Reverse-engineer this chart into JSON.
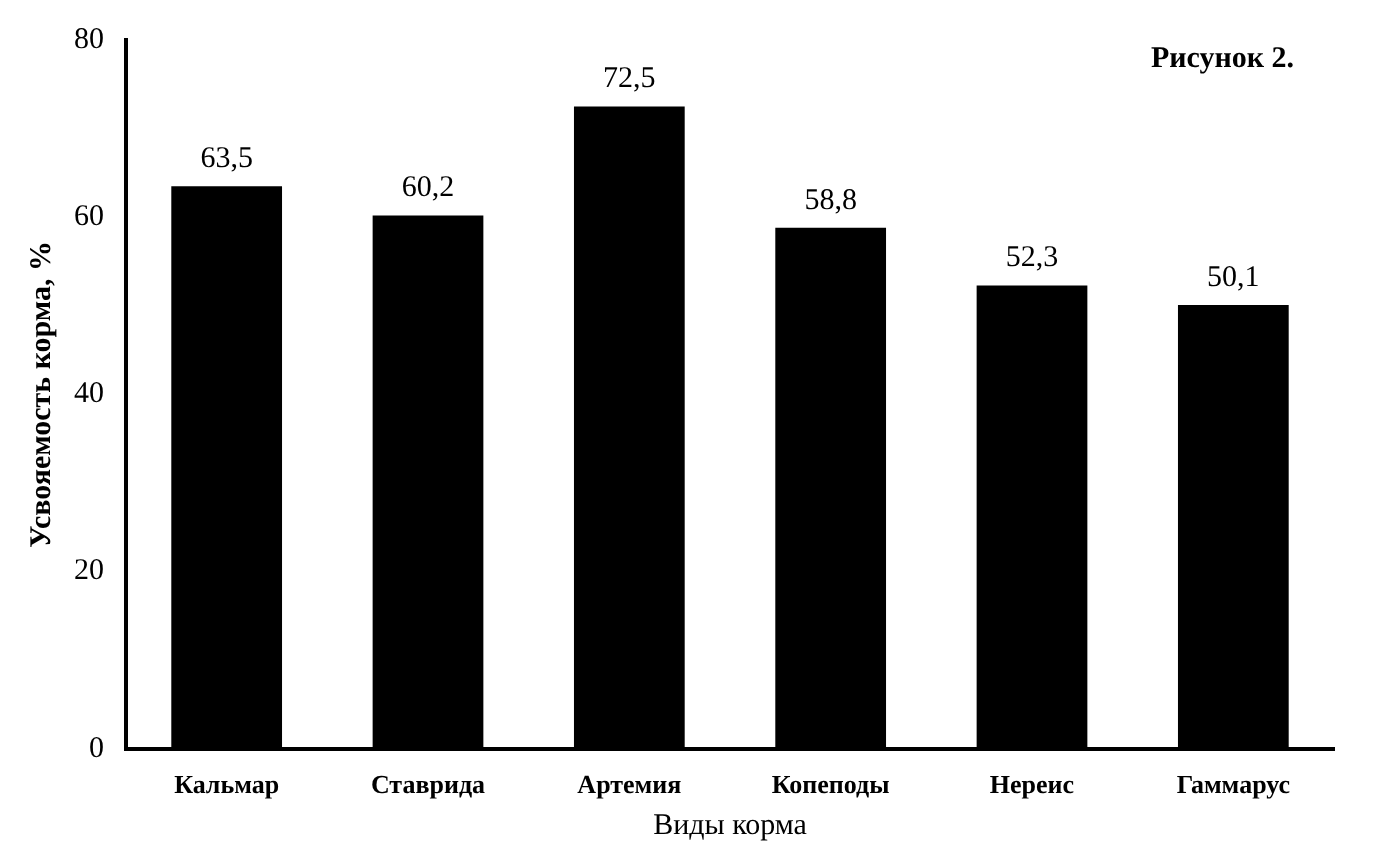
{
  "chart_data": {
    "type": "bar",
    "title": "Рисунок 2.",
    "xlabel": "Виды корма",
    "ylabel": "Усвояемость корма, %",
    "categories": [
      "Кальмар",
      "Ставрида",
      "Артемия",
      "Копеподы",
      "Нереис",
      "Гаммарус"
    ],
    "values": [
      63.5,
      60.2,
      72.5,
      58.8,
      52.3,
      50.1
    ],
    "value_labels": [
      "63,5",
      "60,2",
      "72,5",
      "58,8",
      "52,3",
      "50,1"
    ],
    "color": "#000000",
    "ylim": [
      0,
      80
    ],
    "yticks": [
      0,
      20,
      40,
      60,
      80
    ],
    "grid": false,
    "legend": false
  }
}
